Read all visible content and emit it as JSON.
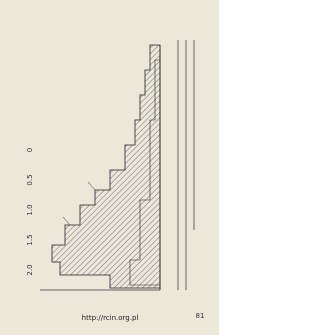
{
  "figure": {
    "ticks": [
      "2.0",
      "1.5",
      "1.0",
      "0.5",
      "0"
    ]
  },
  "footer": {
    "url": "http://rcin.org.pl",
    "page_number": "81"
  }
}
